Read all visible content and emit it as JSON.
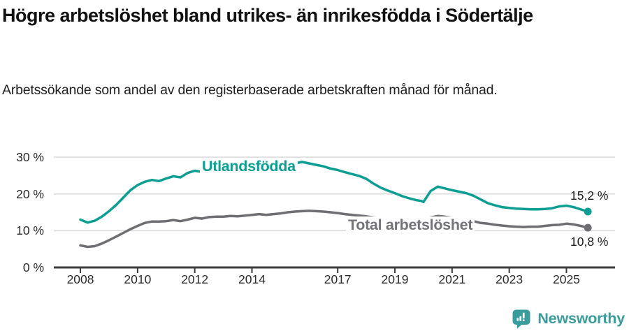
{
  "header": {
    "title": "Högre arbetslöshet bland utrikes- än inrikesfödda i Södertälje",
    "subtitle": "Arbetssökande som andel av den registerbaserade arbetskraften månad för månad."
  },
  "footer": {
    "brand": "Newsworthy",
    "brand_icon": "newsworthy-speech-bubble-chart",
    "brand_color": "#3a9c9d"
  },
  "chart_data": {
    "type": "line",
    "title": "Högre arbetslöshet bland utrikes- än inrikesfödda i Södertälje",
    "subtitle": "Arbetssökande som andel av den registerbaserade arbetskraften månad för månad.",
    "unit": "%",
    "xlabel": "",
    "ylabel": "",
    "grid": "horizontal",
    "legend_position": "inline-on-line",
    "xlim": [
      2007.07,
      2026.7
    ],
    "ylim": [
      0,
      32
    ],
    "grid_color": "#d9d9d9",
    "axis_color": "#3c3c3c",
    "x_ticks": [
      {
        "value": 2008,
        "label": "2008"
      },
      {
        "value": 2010,
        "label": "2010"
      },
      {
        "value": 2012,
        "label": "2012"
      },
      {
        "value": 2014,
        "label": "2014"
      },
      {
        "value": 2017,
        "label": "2017"
      },
      {
        "value": 2019,
        "label": "2019"
      },
      {
        "value": 2021,
        "label": "2021"
      },
      {
        "value": 2023,
        "label": "2023"
      },
      {
        "value": 2025,
        "label": "2025"
      }
    ],
    "y_ticks": [
      {
        "value": 0,
        "label": "0 %"
      },
      {
        "value": 10,
        "label": "10 %"
      },
      {
        "value": 20,
        "label": "20 %"
      },
      {
        "value": 30,
        "label": "30 %"
      }
    ],
    "series": [
      {
        "name": "Utlandsfödda",
        "color": "#0d9e93",
        "end_value": 15.2,
        "end_value_label": "15,2 %",
        "points": [
          [
            2008.0,
            13.0
          ],
          [
            2008.25,
            12.2
          ],
          [
            2008.5,
            12.7
          ],
          [
            2008.75,
            13.8
          ],
          [
            2009.0,
            15.3
          ],
          [
            2009.25,
            17.0
          ],
          [
            2009.5,
            19.0
          ],
          [
            2009.75,
            21.0
          ],
          [
            2010.0,
            22.4
          ],
          [
            2010.25,
            23.3
          ],
          [
            2010.5,
            23.8
          ],
          [
            2010.75,
            23.5
          ],
          [
            2011.0,
            24.2
          ],
          [
            2011.25,
            24.8
          ],
          [
            2011.5,
            24.5
          ],
          [
            2011.75,
            25.7
          ],
          [
            2012.0,
            26.3
          ],
          [
            2012.25,
            26.0
          ],
          [
            2012.5,
            26.2
          ],
          [
            2012.75,
            26.5
          ],
          [
            2013.0,
            26.7
          ],
          [
            2013.25,
            26.9
          ],
          [
            2013.5,
            27.1
          ],
          [
            2013.75,
            27.3
          ],
          [
            2014.0,
            27.5
          ],
          [
            2014.25,
            27.7
          ],
          [
            2014.5,
            27.8
          ],
          [
            2014.75,
            28.0
          ],
          [
            2015.0,
            28.1
          ],
          [
            2015.25,
            28.2
          ],
          [
            2015.5,
            28.3
          ],
          [
            2015.75,
            28.7
          ],
          [
            2016.0,
            28.3
          ],
          [
            2016.25,
            27.9
          ],
          [
            2016.5,
            27.5
          ],
          [
            2016.75,
            26.9
          ],
          [
            2017.0,
            26.5
          ],
          [
            2017.25,
            25.9
          ],
          [
            2017.5,
            25.4
          ],
          [
            2017.75,
            24.9
          ],
          [
            2018.0,
            24.1
          ],
          [
            2018.25,
            22.8
          ],
          [
            2018.5,
            21.7
          ],
          [
            2018.75,
            20.9
          ],
          [
            2019.0,
            20.2
          ],
          [
            2019.25,
            19.4
          ],
          [
            2019.5,
            18.8
          ],
          [
            2019.75,
            18.3
          ],
          [
            2019.92,
            18.1
          ],
          [
            2020.0,
            17.8
          ],
          [
            2020.25,
            20.8
          ],
          [
            2020.5,
            22.0
          ],
          [
            2020.75,
            21.5
          ],
          [
            2021.0,
            21.0
          ],
          [
            2021.25,
            20.6
          ],
          [
            2021.5,
            20.2
          ],
          [
            2021.75,
            19.5
          ],
          [
            2022.0,
            18.5
          ],
          [
            2022.25,
            17.5
          ],
          [
            2022.5,
            16.9
          ],
          [
            2022.75,
            16.4
          ],
          [
            2023.0,
            16.2
          ],
          [
            2023.25,
            16.0
          ],
          [
            2023.5,
            15.9
          ],
          [
            2023.75,
            15.8
          ],
          [
            2024.0,
            15.8
          ],
          [
            2024.25,
            15.9
          ],
          [
            2024.5,
            16.1
          ],
          [
            2024.75,
            16.6
          ],
          [
            2025.0,
            16.8
          ],
          [
            2025.25,
            16.4
          ],
          [
            2025.5,
            15.8
          ],
          [
            2025.75,
            15.2
          ]
        ]
      },
      {
        "name": "Total arbetslöshet",
        "color": "#6e6e73",
        "end_value": 10.8,
        "end_value_label": "10,8 %",
        "points": [
          [
            2008.0,
            6.0
          ],
          [
            2008.25,
            5.6
          ],
          [
            2008.5,
            5.8
          ],
          [
            2008.75,
            6.5
          ],
          [
            2009.0,
            7.4
          ],
          [
            2009.25,
            8.4
          ],
          [
            2009.5,
            9.4
          ],
          [
            2009.75,
            10.4
          ],
          [
            2010.0,
            11.3
          ],
          [
            2010.25,
            12.1
          ],
          [
            2010.5,
            12.5
          ],
          [
            2010.75,
            12.5
          ],
          [
            2011.0,
            12.6
          ],
          [
            2011.25,
            12.9
          ],
          [
            2011.5,
            12.6
          ],
          [
            2011.75,
            13.0
          ],
          [
            2012.0,
            13.5
          ],
          [
            2012.25,
            13.3
          ],
          [
            2012.5,
            13.7
          ],
          [
            2012.75,
            13.8
          ],
          [
            2013.0,
            13.8
          ],
          [
            2013.25,
            14.0
          ],
          [
            2013.5,
            13.9
          ],
          [
            2013.75,
            14.1
          ],
          [
            2014.0,
            14.3
          ],
          [
            2014.25,
            14.5
          ],
          [
            2014.5,
            14.3
          ],
          [
            2014.75,
            14.5
          ],
          [
            2015.0,
            14.7
          ],
          [
            2015.25,
            15.0
          ],
          [
            2015.5,
            15.2
          ],
          [
            2015.75,
            15.3
          ],
          [
            2016.0,
            15.4
          ],
          [
            2016.25,
            15.3
          ],
          [
            2016.5,
            15.2
          ],
          [
            2016.75,
            15.0
          ],
          [
            2017.0,
            14.8
          ],
          [
            2017.25,
            14.5
          ],
          [
            2017.5,
            14.3
          ],
          [
            2017.75,
            14.1
          ],
          [
            2018.0,
            13.9
          ],
          [
            2018.25,
            13.6
          ],
          [
            2018.5,
            13.4
          ],
          [
            2018.75,
            13.2
          ],
          [
            2019.0,
            13.0
          ],
          [
            2019.25,
            12.8
          ],
          [
            2019.5,
            12.7
          ],
          [
            2019.75,
            12.5
          ],
          [
            2020.0,
            12.6
          ],
          [
            2020.25,
            13.6
          ],
          [
            2020.5,
            14.0
          ],
          [
            2020.75,
            13.8
          ],
          [
            2021.0,
            13.5
          ],
          [
            2021.25,
            13.3
          ],
          [
            2021.5,
            13.0
          ],
          [
            2021.75,
            12.6
          ],
          [
            2022.0,
            12.1
          ],
          [
            2022.25,
            11.9
          ],
          [
            2022.5,
            11.6
          ],
          [
            2022.75,
            11.4
          ],
          [
            2023.0,
            11.2
          ],
          [
            2023.25,
            11.1
          ],
          [
            2023.5,
            11.0
          ],
          [
            2023.75,
            11.1
          ],
          [
            2024.0,
            11.1
          ],
          [
            2024.25,
            11.3
          ],
          [
            2024.5,
            11.5
          ],
          [
            2024.75,
            11.6
          ],
          [
            2025.0,
            11.9
          ],
          [
            2025.25,
            11.7
          ],
          [
            2025.5,
            11.3
          ],
          [
            2025.75,
            10.8
          ]
        ]
      }
    ]
  }
}
